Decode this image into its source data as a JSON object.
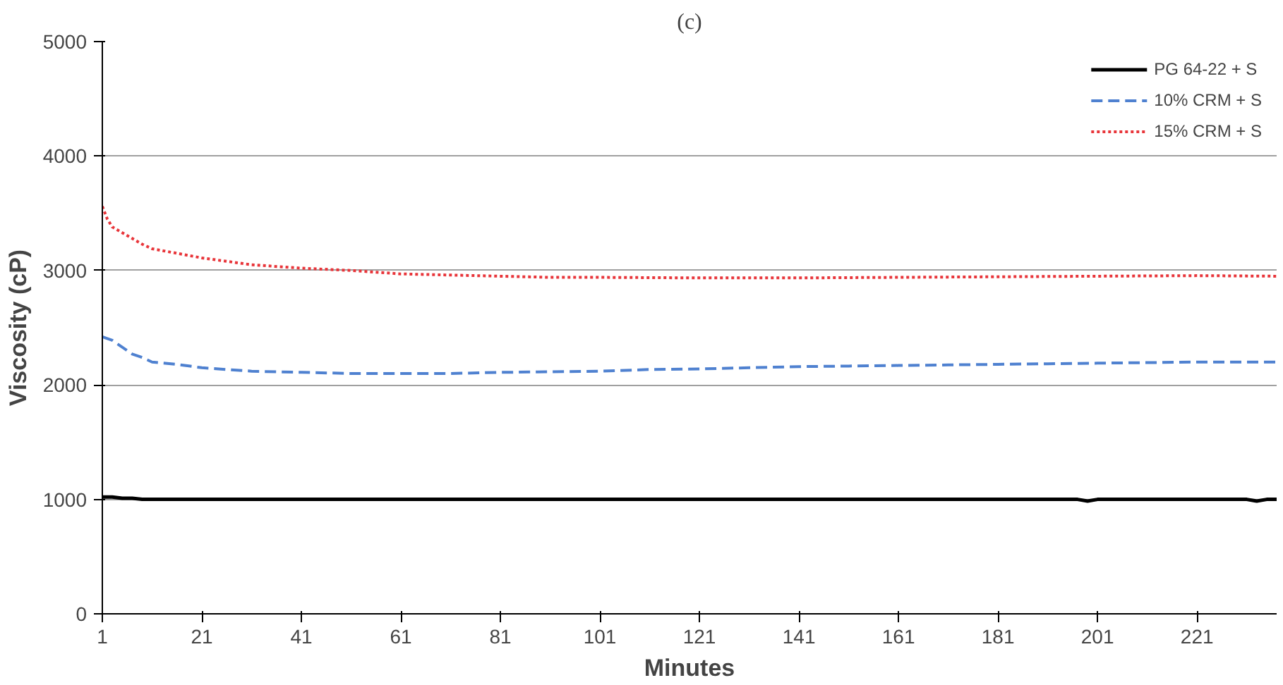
{
  "chart_data": {
    "type": "line",
    "title": "(c)",
    "xlabel": "Minutes",
    "ylabel": "Viscosity (cP)",
    "xlim": [
      1,
      237
    ],
    "xticks": [
      1,
      21,
      41,
      61,
      81,
      101,
      121,
      141,
      161,
      181,
      201,
      221
    ],
    "ylim": [
      0,
      5000
    ],
    "yticks": [
      0,
      1000,
      2000,
      3000,
      4000,
      5000
    ],
    "grid": "y",
    "legend": "top right",
    "marker": "none",
    "series": [
      {
        "name": "PG 64-22 + S",
        "color": "#000000",
        "line_style": "solid",
        "x": [
          1,
          3,
          5,
          7,
          9,
          11,
          21,
          41,
          61,
          81,
          101,
          121,
          141,
          161,
          181,
          197,
          199,
          201,
          221,
          231,
          233,
          235,
          237
        ],
        "values": [
          1020,
          1020,
          1010,
          1010,
          1000,
          1000,
          1000,
          1000,
          1000,
          1000,
          1000,
          1000,
          1000,
          1000,
          1000,
          1000,
          985,
          1000,
          1000,
          1000,
          985,
          1000,
          1000
        ]
      },
      {
        "name": "10% CRM + S",
        "color": "#4f81d0",
        "line_style": "dashed",
        "x": [
          1,
          3,
          5,
          7,
          9,
          11,
          16,
          21,
          31,
          41,
          51,
          61,
          71,
          81,
          91,
          101,
          111,
          121,
          131,
          141,
          151,
          161,
          171,
          181,
          191,
          201,
          211,
          221,
          231,
          237
        ],
        "values": [
          2420,
          2390,
          2330,
          2270,
          2240,
          2200,
          2180,
          2150,
          2120,
          2110,
          2100,
          2100,
          2100,
          2110,
          2115,
          2120,
          2135,
          2140,
          2150,
          2160,
          2165,
          2170,
          2175,
          2180,
          2185,
          2190,
          2195,
          2200,
          2200,
          2200
        ]
      },
      {
        "name": "15% CRM + S",
        "color": "#e8353a",
        "line_style": "dotted",
        "x": [
          1,
          2,
          3,
          5,
          7,
          9,
          11,
          16,
          21,
          26,
          31,
          41,
          51,
          61,
          71,
          81,
          91,
          101,
          121,
          141,
          161,
          181,
          201,
          221,
          237
        ],
        "values": [
          3560,
          3450,
          3380,
          3330,
          3280,
          3230,
          3190,
          3150,
          3110,
          3080,
          3050,
          3020,
          3000,
          2970,
          2960,
          2950,
          2940,
          2940,
          2935,
          2935,
          2940,
          2945,
          2950,
          2955,
          2950
        ]
      }
    ]
  }
}
